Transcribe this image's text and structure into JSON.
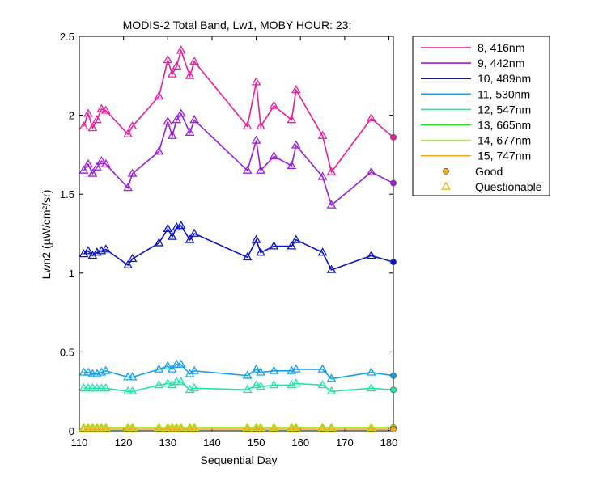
{
  "chart_data": {
    "type": "line",
    "title": "MODIS-2 Total Band, Lw1, MOBY HOUR: 23;",
    "xlabel": "Sequential Day",
    "ylabel": "Lwn2 (µW/cm²/sr)",
    "xlim": [
      110,
      181
    ],
    "ylim": [
      0,
      2.5
    ],
    "xticks": [
      110,
      120,
      130,
      140,
      150,
      160,
      170,
      180
    ],
    "xtick_labels": [
      "110",
      "120",
      "130",
      "140",
      "150",
      "160",
      "170",
      "180"
    ],
    "yticks": [
      0,
      0.5,
      1,
      1.5,
      2,
      2.5
    ],
    "ytick_labels": [
      "0",
      "0.5",
      "1",
      "1.5",
      "2",
      "2.5"
    ],
    "grid": false,
    "legend_position": "outside-right",
    "x": [
      111,
      112,
      113,
      114,
      115,
      116,
      121,
      122,
      128,
      130,
      131,
      132,
      133,
      135,
      136,
      148,
      150,
      151,
      154,
      158,
      159,
      165,
      167,
      176
    ],
    "series": [
      {
        "name": "8, 416nm",
        "color": "#e61ea0",
        "values": [
          1.93,
          2.01,
          1.92,
          1.97,
          2.04,
          2.03,
          1.88,
          1.93,
          2.12,
          2.35,
          2.26,
          2.31,
          2.41,
          2.25,
          2.34,
          1.93,
          2.21,
          1.93,
          2.06,
          1.97,
          2.16,
          1.87,
          1.64,
          1.98
        ]
      },
      {
        "name": "9, 442nm",
        "color": "#9b1edc",
        "values": [
          1.65,
          1.69,
          1.63,
          1.67,
          1.71,
          1.69,
          1.54,
          1.63,
          1.77,
          1.96,
          1.87,
          1.97,
          2.01,
          1.89,
          1.97,
          1.65,
          1.84,
          1.65,
          1.74,
          1.68,
          1.81,
          1.61,
          1.43,
          1.64
        ]
      },
      {
        "name": "10, 489nm",
        "color": "#0a14c8",
        "values": [
          1.12,
          1.14,
          1.11,
          1.13,
          1.14,
          1.15,
          1.05,
          1.09,
          1.19,
          1.28,
          1.23,
          1.29,
          1.3,
          1.21,
          1.25,
          1.1,
          1.21,
          1.13,
          1.17,
          1.17,
          1.21,
          1.13,
          1.02,
          1.11
        ]
      },
      {
        "name": "11, 530nm",
        "color": "#14a0f0",
        "values": [
          0.37,
          0.37,
          0.36,
          0.36,
          0.37,
          0.38,
          0.34,
          0.34,
          0.39,
          0.41,
          0.39,
          0.42,
          0.42,
          0.36,
          0.38,
          0.35,
          0.39,
          0.37,
          0.38,
          0.38,
          0.39,
          0.39,
          0.33,
          0.37
        ]
      },
      {
        "name": "12, 547nm",
        "color": "#1ee6aa",
        "values": [
          0.27,
          0.27,
          0.27,
          0.27,
          0.27,
          0.27,
          0.25,
          0.25,
          0.29,
          0.3,
          0.29,
          0.31,
          0.31,
          0.26,
          0.27,
          0.26,
          0.29,
          0.28,
          0.29,
          0.29,
          0.3,
          0.29,
          0.25,
          0.27
        ]
      },
      {
        "name": "13, 665nm",
        "color": "#1edc1e",
        "values": [
          0.02,
          0.02,
          0.02,
          0.02,
          0.02,
          0.02,
          0.02,
          0.02,
          0.02,
          0.02,
          0.02,
          0.02,
          0.02,
          0.02,
          0.02,
          0.02,
          0.02,
          0.02,
          0.02,
          0.02,
          0.02,
          0.02,
          0.02,
          0.02
        ]
      },
      {
        "name": "14, 677nm",
        "color": "#aaf01e",
        "values": [
          0.02,
          0.02,
          0.02,
          0.02,
          0.02,
          0.02,
          0.02,
          0.02,
          0.02,
          0.02,
          0.02,
          0.02,
          0.02,
          0.02,
          0.02,
          0.02,
          0.02,
          0.02,
          0.02,
          0.02,
          0.02,
          0.02,
          0.02,
          0.02
        ]
      },
      {
        "name": "15, 747nm",
        "color": "#f0aa1e",
        "values": [
          0.01,
          0.01,
          0.01,
          0.01,
          0.01,
          0.01,
          0.01,
          0.01,
          0.01,
          0.01,
          0.01,
          0.01,
          0.01,
          0.01,
          0.01,
          0.01,
          0.01,
          0.01,
          0.01,
          0.01,
          0.01,
          0.01,
          0.01,
          0.01
        ]
      }
    ],
    "good_points": {
      "x": 181,
      "values": [
        1.86,
        1.57,
        1.07,
        0.35,
        0.26,
        0.02,
        0.02,
        0.01
      ]
    },
    "legend_extra": [
      {
        "label": "Good",
        "marker": "circle",
        "color": "#f0aa1e"
      },
      {
        "label": "Questionable",
        "marker": "triangle",
        "color": "#f0aa1e"
      }
    ]
  }
}
